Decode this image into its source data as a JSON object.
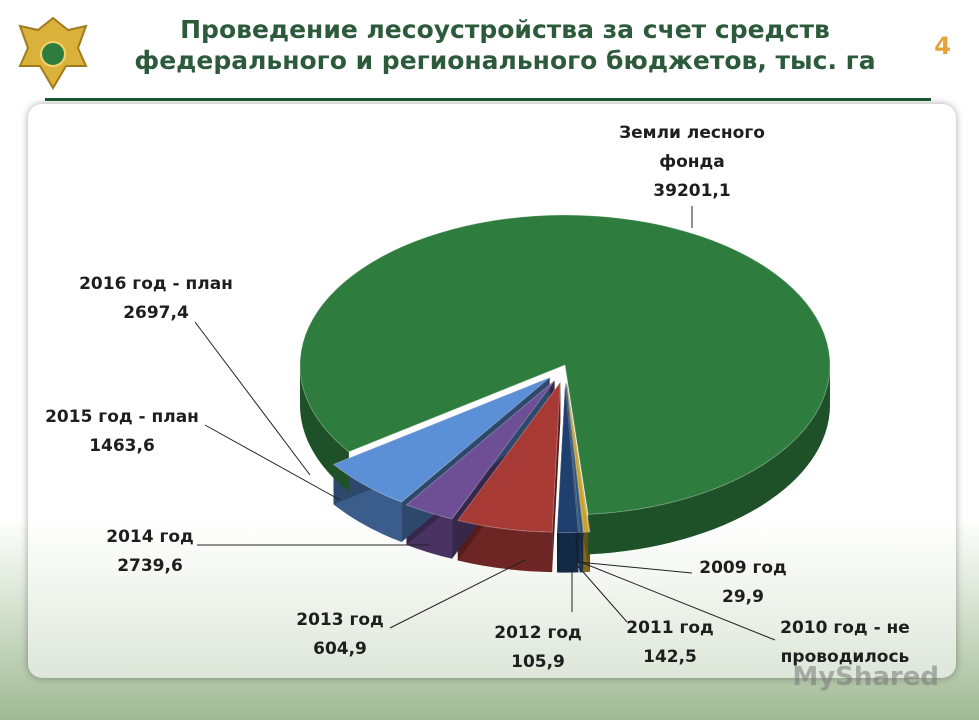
{
  "slide": {
    "title": "Проведение лесоустройства за счет средств федерального и регионального бюджетов, тыс. га",
    "page_number": 4
  },
  "chart_data": {
    "type": "pie",
    "categories": [
      "2009 год",
      "2010 год - не проводилось",
      "2011 год",
      "2012 год",
      "2013 год",
      "2014 год",
      "2015 год - план",
      "2016 год - план",
      "Земли лесного фонда"
    ],
    "values": [
      29.9,
      null,
      142.5,
      105.9,
      604.9,
      2739.6,
      1463.6,
      2697.4,
      39201.1
    ],
    "value_labels": [
      "29,9",
      null,
      "142,5",
      "105,9",
      "604,9",
      "2739,6",
      "1463,6",
      "2697,4",
      "39201,1"
    ],
    "colors": [
      "#d99a1e",
      "#bbbbbb",
      "#c9a227",
      "#2a5580",
      "#1f3f6e",
      "#a83a36",
      "#6e4f96",
      "#5b8fd6",
      "#2e7d3e"
    ]
  },
  "watermark": "MyShared"
}
